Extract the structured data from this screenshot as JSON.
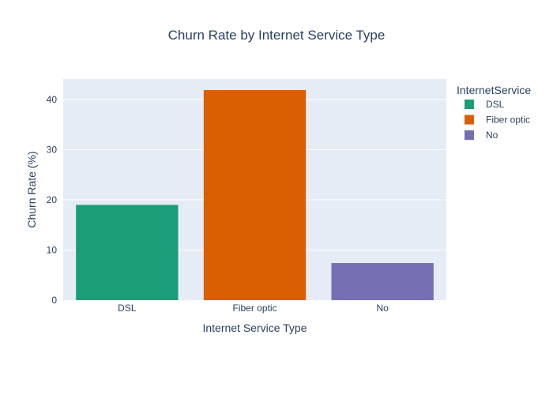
{
  "chart_data": {
    "type": "bar",
    "title": "Churn Rate by Internet Service Type",
    "xlabel": "Internet Service Type",
    "ylabel": "Churn Rate (%)",
    "categories": [
      "DSL",
      "Fiber optic",
      "No"
    ],
    "series": [
      {
        "name": "DSL",
        "category": "DSL",
        "value": 19.0,
        "color": "#1b9e77"
      },
      {
        "name": "Fiber optic",
        "category": "Fiber optic",
        "value": 41.9,
        "color": "#d95f02"
      },
      {
        "name": "No",
        "category": "No",
        "value": 7.4,
        "color": "#7570b3"
      }
    ],
    "ylim": [
      0,
      44.1
    ],
    "yticks": [
      0,
      10,
      20,
      30,
      40
    ],
    "grid": true,
    "legend": {
      "title": "InternetService",
      "placement": "top-right"
    },
    "colors": {
      "plot_background": "#e5ecf6",
      "gridline": "#ffffff",
      "text": "#2a3f5f"
    }
  }
}
